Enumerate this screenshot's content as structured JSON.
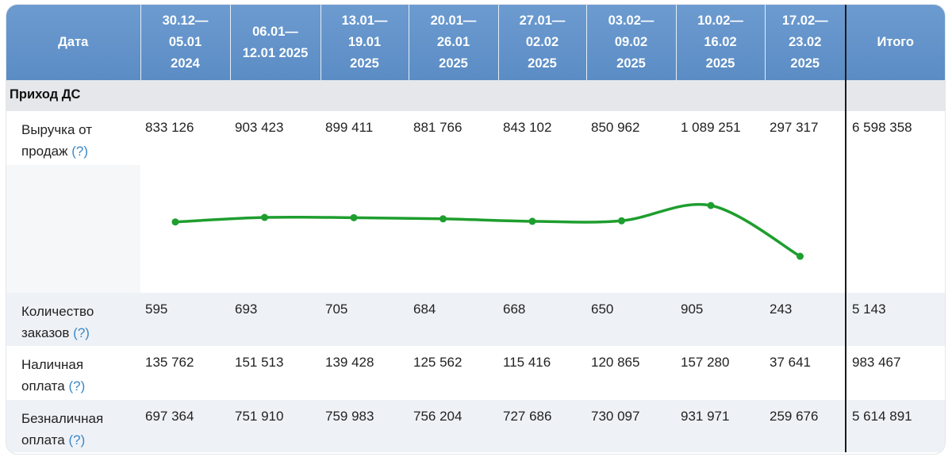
{
  "header": {
    "date_label": "Дата",
    "periods": [
      [
        "30.12—",
        "05.01",
        "2024"
      ],
      [
        "06.01—",
        "12.01 2025"
      ],
      [
        "13.01—",
        "19.01",
        "2025"
      ],
      [
        "20.01—",
        "26.01",
        "2025"
      ],
      [
        "27.01—",
        "02.02",
        "2025"
      ],
      [
        "03.02—",
        "09.02",
        "2025"
      ],
      [
        "10.02—",
        "16.02",
        "2025"
      ],
      [
        "17.02—",
        "23.02",
        "2025"
      ]
    ],
    "total_label": "Итого"
  },
  "section_title": "Приход ДС",
  "help_mark": "(?)",
  "rows": {
    "revenue": {
      "label_lines": [
        "Выручка от",
        "продаж"
      ],
      "values": [
        "833 126",
        "903 423",
        "899 411",
        "881 766",
        "843 102",
        "850 962",
        "1 089 251",
        "297 317"
      ],
      "total": "6 598 358"
    },
    "orders": {
      "label_lines": [
        "Количество",
        "заказов"
      ],
      "values": [
        "595",
        "693",
        "705",
        "684",
        "668",
        "650",
        "905",
        "243"
      ],
      "total": "5 143"
    },
    "cash": {
      "label_lines": [
        "Наличная",
        "оплата"
      ],
      "values": [
        "135 762",
        "151 513",
        "139 428",
        "125 562",
        "115 416",
        "120 865",
        "157 280",
        "37 641"
      ],
      "total": "983 467"
    },
    "cashless": {
      "label_lines": [
        "Безналичная",
        "оплата"
      ],
      "values": [
        "697 364",
        "751 910",
        "759 983",
        "756 204",
        "727 686",
        "730 097",
        "931 971",
        "259 676"
      ],
      "total": "5 614 891"
    }
  },
  "chart_data": {
    "type": "line",
    "x": [
      "30.12—05.01 2024",
      "06.01—12.01 2025",
      "13.01—19.01 2025",
      "20.01—26.01 2025",
      "27.01—02.02 2025",
      "03.02—09.02 2025",
      "10.02—16.02 2025",
      "17.02—23.02 2025"
    ],
    "series": [
      {
        "values": [
          833126,
          903423,
          899411,
          881766,
          843102,
          850962,
          1089251,
          297317
        ]
      }
    ],
    "color": "#1e9e2e",
    "grid": false,
    "legend": "none"
  },
  "colors": {
    "header_bg": "#6497cc",
    "section_bg": "#e5e7ea",
    "row_shade": "#eef2f7",
    "help_link": "#3b87c6",
    "line": "#1e9e2e"
  }
}
